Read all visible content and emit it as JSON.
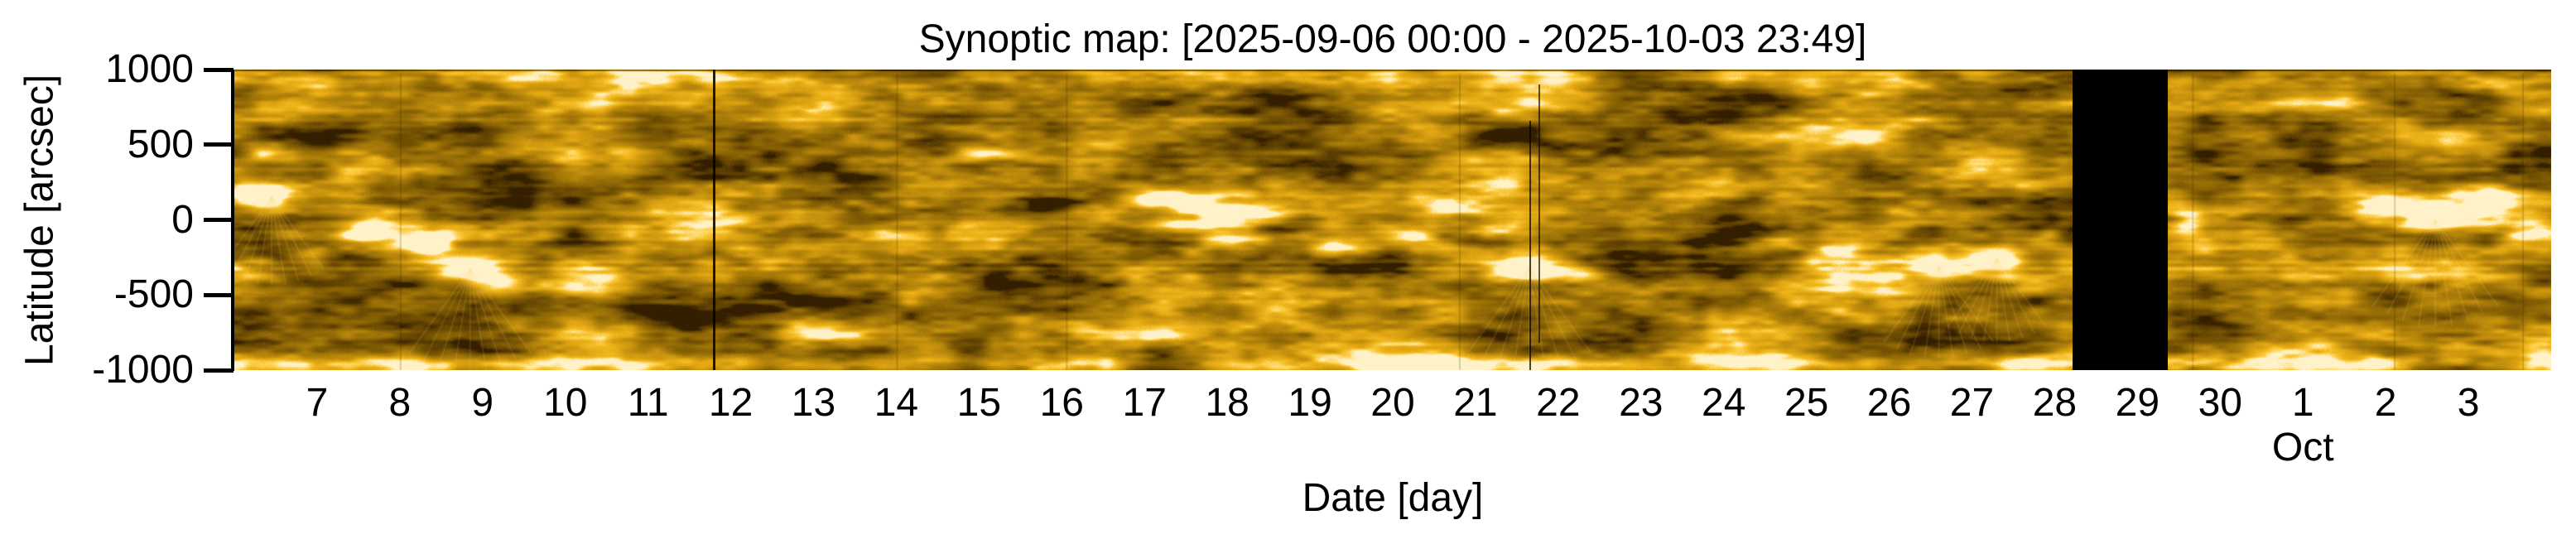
{
  "figure": {
    "background": "#ffffff",
    "text_color": "#000000"
  },
  "chart_data": {
    "type": "heatmap",
    "title": "Synoptic map: [2025-09-06 00:00 - 2025-10-03 23:49]",
    "xlabel": "Date [day]",
    "ylabel": "Latitude [arcsec]",
    "time_start": "2025-09-06 00:00",
    "time_end": "2025-10-03 23:49",
    "x_day_range": [
      6,
      34
    ],
    "y_range": [
      -1000,
      1000
    ],
    "grid": false,
    "legend": false,
    "y_ticks": [
      {
        "label": "1000",
        "value": 1000
      },
      {
        "label": "500",
        "value": 500
      },
      {
        "label": "0",
        "value": 0
      },
      {
        "label": "-500",
        "value": -500
      },
      {
        "label": "-1000",
        "value": -1000
      }
    ],
    "x_ticks": [
      {
        "label": "7",
        "day": 7
      },
      {
        "label": "8",
        "day": 8
      },
      {
        "label": "9",
        "day": 9
      },
      {
        "label": "10",
        "day": 10
      },
      {
        "label": "11",
        "day": 11
      },
      {
        "label": "12",
        "day": 12
      },
      {
        "label": "13",
        "day": 13
      },
      {
        "label": "14",
        "day": 14
      },
      {
        "label": "15",
        "day": 15
      },
      {
        "label": "16",
        "day": 16
      },
      {
        "label": "17",
        "day": 17
      },
      {
        "label": "18",
        "day": 18
      },
      {
        "label": "19",
        "day": 19
      },
      {
        "label": "20",
        "day": 20
      },
      {
        "label": "21",
        "day": 21
      },
      {
        "label": "22",
        "day": 22
      },
      {
        "label": "23",
        "day": 23
      },
      {
        "label": "24",
        "day": 24
      },
      {
        "label": "25",
        "day": 25
      },
      {
        "label": "26",
        "day": 26
      },
      {
        "label": "27",
        "day": 27
      },
      {
        "label": "28",
        "day": 28
      },
      {
        "label": "29",
        "day": 29
      },
      {
        "label": "30",
        "day": 30
      },
      {
        "label": "1",
        "day": 31
      },
      {
        "label": "2",
        "day": 32
      },
      {
        "label": "3",
        "day": 33
      }
    ],
    "month_label": {
      "text": "Oct",
      "day": 31
    },
    "data_gap": {
      "start_day": 28.22,
      "end_day": 29.37,
      "color": "#000000"
    },
    "artifact_lines": [
      {
        "day": 11.8,
        "y0_frac": 0.0,
        "y1_frac": 1.0,
        "width": 3,
        "color": "rgba(5,3,0,0.88)"
      },
      {
        "day": 21.66,
        "y0_frac": 0.17,
        "y1_frac": 1.0,
        "width": 2,
        "color": "rgba(10,6,0,0.75)"
      },
      {
        "day": 21.77,
        "y0_frac": 0.05,
        "y1_frac": 0.91,
        "width": 2,
        "color": "rgba(10,6,0,0.65)"
      }
    ],
    "seam_days": [
      8.0,
      14.0,
      16.05,
      20.8,
      29.66,
      32.1,
      33.65
    ],
    "colormap": [
      [
        0.0,
        "#331f00"
      ],
      [
        0.1,
        "#5a3d02"
      ],
      [
        0.25,
        "#7e5a04"
      ],
      [
        0.4,
        "#9c7208"
      ],
      [
        0.55,
        "#bc8a0c"
      ],
      [
        0.7,
        "#dda312"
      ],
      [
        0.82,
        "#f2b91f"
      ],
      [
        0.91,
        "#ffd355"
      ],
      [
        1.0,
        "#fff2c8"
      ]
    ],
    "bright_features": [
      [
        6.08,
        200,
        18,
        14,
        0.7,
        0
      ],
      [
        6.45,
        150,
        38,
        16,
        0.92,
        1
      ],
      [
        6.3,
        430,
        26,
        10,
        0.45,
        0
      ],
      [
        6.9,
        -260,
        22,
        12,
        0.5,
        0
      ],
      [
        7.55,
        -80,
        30,
        14,
        0.82,
        0
      ],
      [
        8.4,
        -160,
        24,
        12,
        0.55,
        0
      ],
      [
        8.85,
        -330,
        45,
        18,
        0.95,
        1
      ],
      [
        9.2,
        -430,
        30,
        12,
        0.5,
        0
      ],
      [
        10.4,
        -460,
        40,
        12,
        0.4,
        0
      ],
      [
        12.4,
        350,
        45,
        10,
        0.35,
        0
      ],
      [
        15.0,
        590,
        55,
        10,
        0.45,
        0
      ],
      [
        15.1,
        430,
        40,
        8,
        0.35,
        0
      ],
      [
        16.3,
        60,
        40,
        14,
        0.55,
        0
      ],
      [
        17.2,
        150,
        45,
        12,
        0.6,
        0
      ],
      [
        17.4,
        140,
        50,
        7,
        0.6,
        0
      ],
      [
        17.6,
        -30,
        70,
        8,
        0.78,
        0
      ],
      [
        17.9,
        70,
        60,
        7,
        0.72,
        0
      ],
      [
        18.15,
        -130,
        55,
        7,
        0.65,
        0
      ],
      [
        18.5,
        30,
        45,
        8,
        0.6,
        0
      ],
      [
        19.3,
        -160,
        35,
        12,
        0.5,
        0
      ],
      [
        20.2,
        -110,
        30,
        13,
        0.55,
        0
      ],
      [
        21.3,
        -80,
        55,
        8,
        0.55,
        0
      ],
      [
        21.65,
        -320,
        45,
        16,
        0.95,
        1
      ],
      [
        22.3,
        -360,
        30,
        12,
        0.5,
        0
      ],
      [
        23.8,
        250,
        45,
        12,
        0.5,
        0
      ],
      [
        24.6,
        -150,
        35,
        10,
        0.4,
        0
      ],
      [
        25.3,
        -210,
        35,
        13,
        0.5,
        0
      ],
      [
        26.6,
        -310,
        40,
        16,
        0.85,
        1
      ],
      [
        27.3,
        -260,
        36,
        14,
        0.7,
        1
      ],
      [
        27.9,
        -110,
        26,
        12,
        0.55,
        0
      ],
      [
        29.6,
        -20,
        26,
        20,
        0.6,
        0
      ],
      [
        31.9,
        120,
        35,
        16,
        0.55,
        0
      ],
      [
        32.6,
        0,
        46,
        20,
        0.9,
        1
      ],
      [
        33.3,
        160,
        30,
        14,
        0.6,
        0
      ],
      [
        33.8,
        -60,
        25,
        12,
        0.5,
        0
      ]
    ],
    "dark_features": [
      [
        7.9,
        -560,
        120,
        22,
        -0.22
      ],
      [
        10.5,
        -630,
        220,
        14,
        -0.22
      ],
      [
        12.5,
        -520,
        120,
        12,
        -0.16
      ],
      [
        11.0,
        620,
        120,
        22,
        -0.14
      ],
      [
        13.8,
        260,
        110,
        40,
        -0.16
      ],
      [
        14.6,
        -350,
        90,
        30,
        -0.12
      ],
      [
        16.0,
        700,
        150,
        20,
        -0.15
      ],
      [
        18.8,
        520,
        120,
        24,
        -0.18
      ],
      [
        20.0,
        300,
        90,
        28,
        -0.14
      ],
      [
        23.0,
        430,
        100,
        28,
        -0.16
      ],
      [
        24.5,
        600,
        130,
        20,
        -0.14
      ],
      [
        26.0,
        250,
        90,
        30,
        -0.12
      ],
      [
        9.6,
        250,
        80,
        30,
        -0.15
      ],
      [
        30.6,
        320,
        80,
        32,
        -0.2
      ],
      [
        31.3,
        -420,
        90,
        22,
        -0.15
      ],
      [
        33.0,
        -500,
        80,
        18,
        -0.12
      ]
    ]
  }
}
